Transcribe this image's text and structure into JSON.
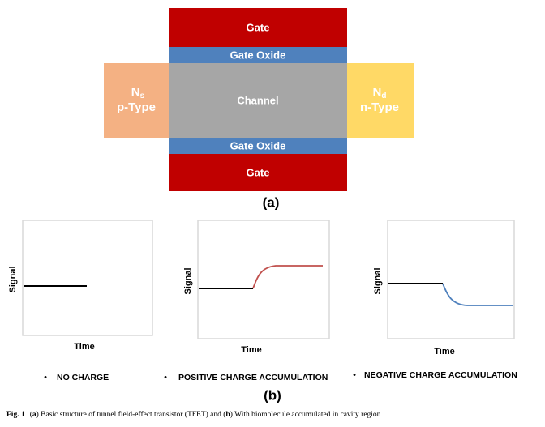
{
  "diagram": {
    "gate_top": "Gate",
    "oxide_top": "Gate Oxide",
    "channel": "Channel",
    "source": {
      "symbol": "N",
      "subscript": "s",
      "type": "p-Type"
    },
    "drain": {
      "symbol": "N",
      "subscript": "d",
      "type": "n-Type"
    },
    "oxide_bottom": "Gate Oxide",
    "gate_bottom": "Gate",
    "label": "(a)"
  },
  "panels": [
    {
      "y_label": "Signal",
      "x_label": "Time",
      "bullet": "•",
      "caption": "NO CHARGE"
    },
    {
      "y_label": "Signal",
      "x_label": "Time",
      "bullet": "•",
      "caption": "POSITIVE CHARGE ACCUMULATION"
    },
    {
      "y_label": "Signal",
      "x_label": "Time",
      "bullet": "•",
      "caption": "NEGATIVE CHARGE ACCUMULATION"
    }
  ],
  "panels_label": "(b)",
  "caption": {
    "fig": "Fig. 1",
    "open_a": "(",
    "a": "a",
    "text1": ") Basic structure of tunnel field-effect transistor (TFET) and (",
    "b": "b",
    "text2": ") With biomolecule accumulated in cavity region"
  }
}
